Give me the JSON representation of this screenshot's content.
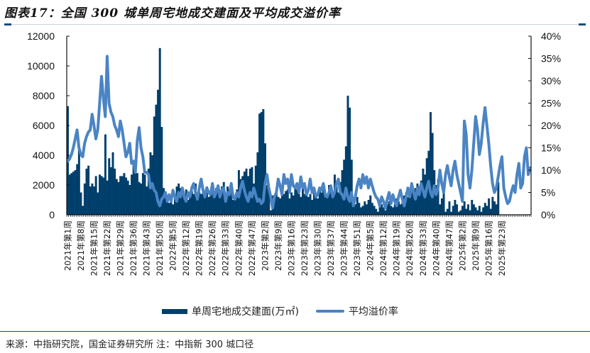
{
  "title": "图表17：全国 300 城单周宅地成交建面及平均成交溢价率",
  "footer": "来源：中指研究院，国金证券研究所 注：中指新 300 城口径",
  "legend": {
    "bar_label": "单周宅地成交建面(万㎡)",
    "line_label": "平均溢价率"
  },
  "colors": {
    "bar": "#003f6b",
    "line": "#4a84c4",
    "axis": "#111111",
    "rule": "#1f4e79"
  },
  "chart_data": {
    "type": "bar+line",
    "title": "全国 300 城单周宅地成交建面及平均成交溢价率",
    "xlabel": "",
    "ylabel_left": "单周宅地成交建面(万㎡)",
    "ylabel_right": "平均溢价率",
    "ylim_left": [
      0,
      12000
    ],
    "ylim_right": [
      0,
      0.4
    ],
    "yticks_left": [
      "0",
      "2000",
      "4000",
      "6000",
      "8000",
      "10000",
      "12000"
    ],
    "yticks_right": [
      "0%",
      "5%",
      "10%",
      "15%",
      "20%",
      "25%",
      "30%",
      "35%",
      "40%"
    ],
    "grid": false,
    "legend_position": "bottom",
    "x_tick_step_weeks": 7,
    "x_tick_labels": [
      "2021年第1周",
      "2021年第8周",
      "2021年第15周",
      "2021年第22周",
      "2021年第29周",
      "2021年第36周",
      "2021年第43周",
      "2021年第50周",
      "2022年第5周",
      "2022年第12周",
      "2022年第19周",
      "2022年第26周",
      "2022年第33周",
      "2022年第40周",
      "2022年第47周",
      "2023年第2周",
      "2023年第9周",
      "2023年第16周",
      "2023年第23周",
      "2023年第30周",
      "2023年第37周",
      "2023年第44周",
      "2023年第51周",
      "2024年第5周",
      "2024年第12周",
      "2024年第19周",
      "2024年第26周",
      "2024年第33周",
      "2024年第40周",
      "2024年第47周",
      "2025年第2周",
      "2025年第9周",
      "2025年第16周",
      "2025年第23周"
    ],
    "series": [
      {
        "name": "单周宅地成交建面(万㎡)",
        "type": "bar",
        "axis": "left",
        "values": [
          7300,
          2700,
          2800,
          2900,
          3000,
          3400,
          4500,
          1500,
          600,
          2100,
          3100,
          3300,
          1900,
          2100,
          1900,
          2600,
          1500,
          2700,
          2600,
          2500,
          5400,
          2300,
          3800,
          3200,
          4200,
          3100,
          2400,
          2200,
          2600,
          2600,
          2800,
          2500,
          2300,
          2000,
          2700,
          3600,
          2800,
          2800,
          2200,
          2100,
          2800,
          2700,
          1900,
          3100,
          4200,
          4000,
          6600,
          7400,
          8400,
          11200,
          5900,
          1800,
          1300,
          1100,
          800,
          1300,
          700,
          1200,
          1900,
          2100,
          1800,
          1500,
          1300,
          1700,
          1000,
          1200,
          1600,
          1400,
          2100,
          1300,
          1500,
          1400,
          1700,
          1300,
          1900,
          1200,
          1600,
          2100,
          1300,
          1800,
          2000,
          1300,
          1900,
          2200,
          1200,
          1900,
          1700,
          1900,
          1000,
          1200,
          1700,
          3000,
          2400,
          2600,
          2900,
          3100,
          2600,
          3100,
          3200,
          2100,
          3300,
          4200,
          6800,
          6900,
          7100,
          4800,
          2000,
          1700,
          300,
          1300,
          1000,
          1600,
          1200,
          1100,
          1800,
          1400,
          1600,
          1700,
          1100,
          1500,
          1300,
          1900,
          1700,
          1400,
          1200,
          2000,
          1400,
          1600,
          1200,
          1400,
          1000,
          1600,
          1300,
          1100,
          1800,
          1500,
          1700,
          1200,
          1400,
          2000,
          1600,
          1300,
          2700,
          1900,
          1500,
          2200,
          3000,
          3700,
          4600,
          8000,
          7200,
          3700,
          800,
          700,
          1200,
          800,
          500,
          600,
          900,
          700,
          1000,
          1300,
          800,
          600,
          400,
          200,
          500,
          700,
          500,
          300,
          700,
          900,
          600,
          500,
          700,
          1100,
          900,
          700,
          800,
          1300,
          1500,
          1200,
          1700,
          1900,
          1400,
          1800,
          2100,
          1900,
          2300,
          3100,
          2700,
          3800,
          4300,
          6900,
          5500,
          3000,
          2000,
          2400,
          700,
          1100,
          1500,
          200,
          400,
          900,
          200,
          600,
          1000,
          700,
          200,
          300,
          600,
          900,
          400,
          700,
          300,
          1000,
          700,
          500,
          300,
          600,
          200,
          500,
          800,
          600,
          1100,
          400,
          1200,
          900,
          700,
          2200
        ],
        "peaks": [
          {
            "label": "2021年第1周",
            "value": 7300
          },
          {
            "label": "2021年第50周附近",
            "value": 11200
          },
          {
            "label": "2022年第50周附近",
            "value": 7100
          },
          {
            "label": "2023年第51周附近",
            "value": 8000
          },
          {
            "label": "2024年第49周附近",
            "value": 6900
          }
        ]
      },
      {
        "name": "平均溢价率",
        "type": "line",
        "axis": "right",
        "values": [
          0.12,
          0.125,
          0.135,
          0.15,
          0.17,
          0.19,
          0.15,
          0.135,
          0.13,
          0.16,
          0.175,
          0.185,
          0.19,
          0.225,
          0.2,
          0.17,
          0.19,
          0.25,
          0.31,
          0.26,
          0.22,
          0.355,
          0.25,
          0.23,
          0.22,
          0.2,
          0.19,
          0.175,
          0.21,
          0.19,
          0.16,
          0.13,
          0.14,
          0.16,
          0.115,
          0.12,
          0.095,
          0.165,
          0.195,
          0.15,
          0.13,
          0.095,
          0.095,
          0.09,
          0.06,
          0.07,
          0.055,
          0.05,
          0.03,
          0.02,
          0.035,
          0.04,
          0.05,
          0.03,
          0.045,
          0.03,
          0.055,
          0.04,
          0.03,
          0.05,
          0.04,
          0.06,
          0.04,
          0.03,
          0.05,
          0.04,
          0.06,
          0.07,
          0.05,
          0.035,
          0.06,
          0.08,
          0.055,
          0.04,
          0.06,
          0.05,
          0.045,
          0.07,
          0.04,
          0.05,
          0.065,
          0.04,
          0.055,
          0.06,
          0.03,
          0.05,
          0.045,
          0.07,
          0.04,
          0.035,
          0.05,
          0.04,
          0.06,
          0.075,
          0.055,
          0.04,
          0.03,
          0.05,
          0.04,
          0.06,
          0.045,
          0.03,
          0.035,
          0.025,
          0.03,
          0.07,
          0.09,
          0.06,
          0.04,
          0.015,
          0.04,
          0.05,
          0.08,
          0.065,
          0.045,
          0.09,
          0.07,
          0.08,
          0.05,
          0.09,
          0.065,
          0.06,
          0.07,
          0.05,
          0.085,
          0.06,
          0.07,
          0.045,
          0.055,
          0.08,
          0.05,
          0.06,
          0.04,
          0.045,
          0.06,
          0.055,
          0.07,
          0.045,
          0.04,
          0.05,
          0.065,
          0.04,
          0.05,
          0.07,
          0.08,
          0.05,
          0.045,
          0.035,
          0.06,
          0.04,
          0.03,
          0.05,
          0.02,
          0.04,
          0.065,
          0.08,
          0.06,
          0.09,
          0.07,
          0.085,
          0.06,
          0.08,
          0.065,
          0.05,
          0.04,
          0.035,
          0.02,
          0.04,
          0.03,
          0.015,
          0.035,
          0.05,
          0.025,
          0.045,
          0.03,
          0.02,
          0.04,
          0.055,
          0.035,
          0.02,
          0.04,
          0.06,
          0.04,
          0.07,
          0.05,
          0.035,
          0.06,
          0.045,
          0.07,
          0.055,
          0.04,
          0.06,
          0.075,
          0.05,
          0.04,
          0.065,
          0.045,
          0.06,
          0.1,
          0.07,
          0.05,
          0.09,
          0.11,
          0.085,
          0.065,
          0.1,
          0.12,
          0.09,
          0.07,
          0.05,
          0.03,
          0.21,
          0.18,
          0.09,
          0.06,
          0.1,
          0.16,
          0.22,
          0.19,
          0.135,
          0.16,
          0.205,
          0.24,
          0.2,
          0.16,
          0.11,
          0.07,
          0.05,
          0.06,
          0.085,
          0.11,
          0.13,
          0.06,
          0.04,
          0.025,
          0.03,
          0.05,
          0.065,
          0.05,
          0.09,
          0.115,
          0.06,
          0.07,
          0.13,
          0.15,
          0.09,
          0.105
        ]
      }
    ]
  }
}
